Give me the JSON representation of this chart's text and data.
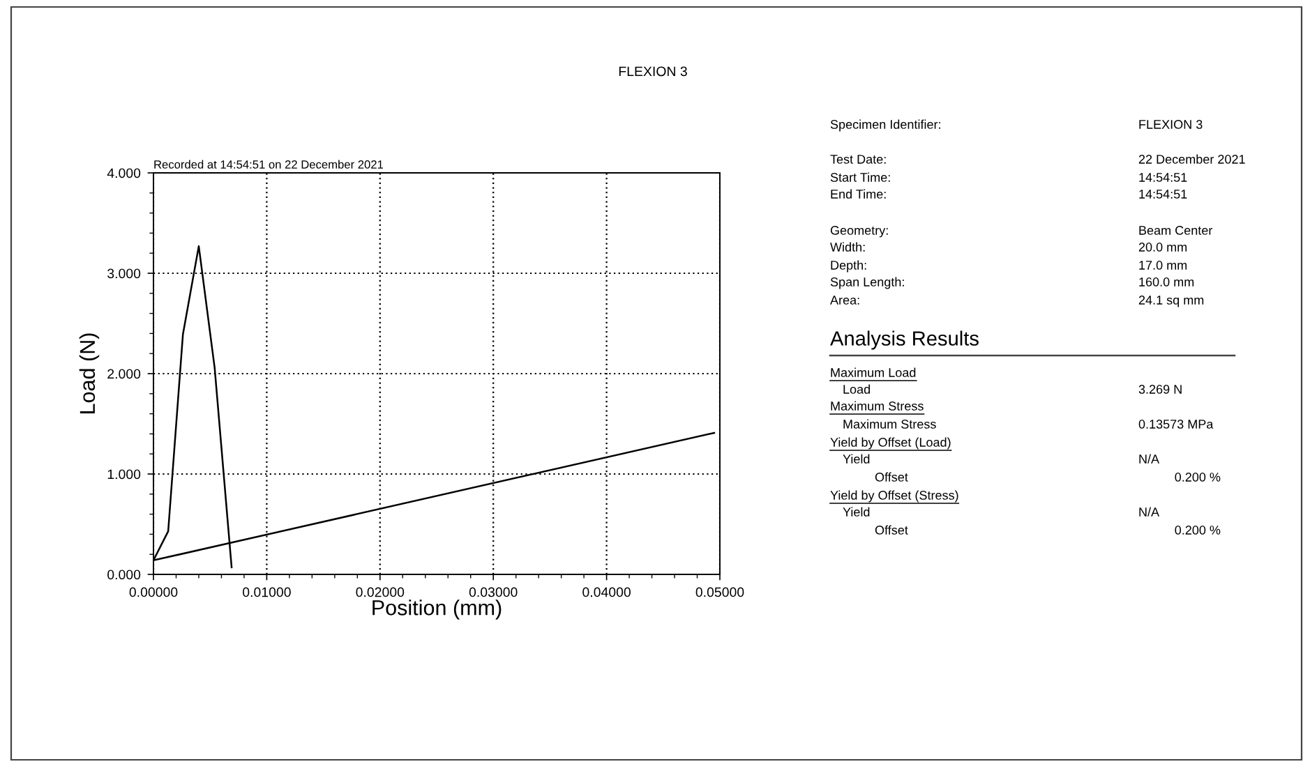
{
  "chart_data": [
    {
      "type": "line",
      "title": "FLEXION 3",
      "xlabel": "Position (mm)",
      "ylabel": "Load (N)",
      "annotations": [
        "Recorded at 14:54:51 on 22 December 2021"
      ],
      "series": [
        {
          "color": "#000000",
          "x": [
            0,
            0.0013,
            0.0026,
            0.004,
            0.0054,
            0.0069
          ],
          "values": [
            0.14,
            0.43,
            2.39,
            3.27,
            2.06,
            0.07
          ]
        },
        {
          "color": "#000000",
          "x": [
            0,
            0.0495
          ],
          "values": [
            0.14,
            1.41
          ]
        }
      ],
      "xlim": [
        0,
        0.05
      ],
      "ylim": [
        0,
        4
      ],
      "xticks": [
        {
          "value": 0,
          "label": "0.00000"
        },
        {
          "value": 0.01,
          "label": "0.01000"
        },
        {
          "value": 0.02,
          "label": "0.02000"
        },
        {
          "value": 0.03,
          "label": "0.03000"
        },
        {
          "value": 0.04,
          "label": "0.04000"
        },
        {
          "value": 0.05,
          "label": "0.05000"
        }
      ],
      "yticks": [
        {
          "value": 0,
          "label": "0.000"
        },
        {
          "value": 1,
          "label": "1.000"
        },
        {
          "value": 2,
          "label": "2.000"
        },
        {
          "value": 3,
          "label": "3.000"
        },
        {
          "value": 4,
          "label": "4.000"
        }
      ],
      "grid": true,
      "line_style": "solid"
    },
    {
      "type": "other",
      "title": "Analysis Results",
      "annotations": [
        "Specimen Identifier:",
        "FLEXION 3",
        "Test Date:",
        "22 December 2021",
        "Start Time:",
        "14:54:51",
        "End Time:",
        "14:54:51",
        "Geometry:",
        "Beam Center",
        "Width:",
        "20.0 mm",
        "Depth:",
        "17.0 mm",
        "Span Length:",
        "160.0 mm",
        "Area:",
        "24.1 sq mm",
        "Maximum Load",
        "Load",
        "3.269 N",
        "Maximum Stress",
        "Maximum Stress",
        "0.13573 MPa",
        "Yield by Offset (Load)",
        "Yield",
        "N/A",
        "Offset",
        "0.200 %",
        "Yield by Offset (Stress)",
        "Yield",
        "N/A",
        "Offset",
        "0.200 %"
      ]
    }
  ]
}
